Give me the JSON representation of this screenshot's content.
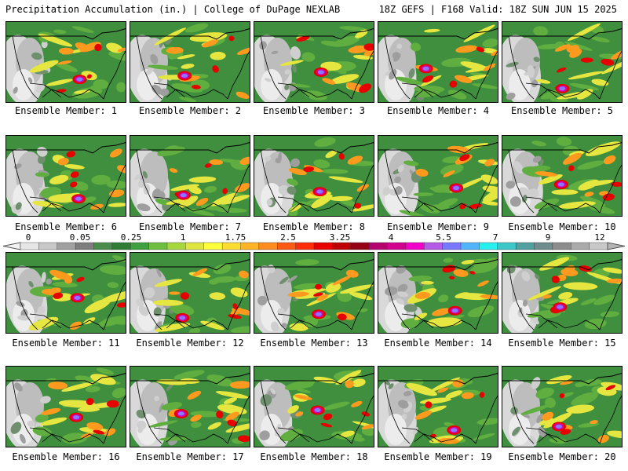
{
  "header": {
    "left_title": "Precipitation Accumulation (in.) | College of DuPage NEXLAB",
    "right_title": "18Z GEFS | F168 Valid: 18Z SUN JUN 15 2025"
  },
  "panels": [
    {
      "label": "Ensemble Member: 1"
    },
    {
      "label": "Ensemble Member: 2"
    },
    {
      "label": "Ensemble Member: 3"
    },
    {
      "label": "Ensemble Member: 4"
    },
    {
      "label": "Ensemble Member: 5"
    },
    {
      "label": "Ensemble Member: 6"
    },
    {
      "label": "Ensemble Member: 7"
    },
    {
      "label": "Ensemble Member: 8"
    },
    {
      "label": "Ensemble Member: 9"
    },
    {
      "label": "Ensemble Member: 10"
    },
    {
      "label": "Ensemble Member: 11"
    },
    {
      "label": "Ensemble Member: 12"
    },
    {
      "label": "Ensemble Member: 13"
    },
    {
      "label": "Ensemble Member: 14"
    },
    {
      "label": "Ensemble Member: 15"
    },
    {
      "label": "Ensemble Member: 16"
    },
    {
      "label": "Ensemble Member: 17"
    },
    {
      "label": "Ensemble Member: 18"
    },
    {
      "label": "Ensemble Member: 19"
    },
    {
      "label": "Ensemble Member: 20"
    }
  ],
  "colorbar": {
    "tick_labels": [
      "0",
      "0.05",
      "0.25",
      "1",
      "1.75",
      "2.5",
      "3.25",
      "4",
      "5.5",
      "7",
      "9",
      "12"
    ],
    "colors": [
      "#e6e6e6",
      "#c8c8c8",
      "#a0a0a0",
      "#7d7d7d",
      "#4b8c4b",
      "#2e7d32",
      "#3fa03f",
      "#6fbf3f",
      "#a6d83c",
      "#e0e640",
      "#ffff3c",
      "#ffdc32",
      "#ffb428",
      "#ff8c1e",
      "#ff5a14",
      "#ff2d0a",
      "#e60000",
      "#be0000",
      "#960014",
      "#b4006e",
      "#d2008c",
      "#f000c8",
      "#b45ae6",
      "#7878ff",
      "#50b4ff",
      "#28f0f0",
      "#3cc8c8",
      "#50a0a0",
      "#6e8c8c",
      "#8c8c8c",
      "#aaaaaa",
      "#c8c8c8"
    ]
  },
  "legend_colors": {
    "land_background": "#3f8f3f",
    "dry": "#bdbdbd",
    "light": "#2e7d32",
    "moderate": "#e6e640",
    "heavy": "#e60000",
    "extreme": "#8878ff",
    "border": "#000000"
  }
}
